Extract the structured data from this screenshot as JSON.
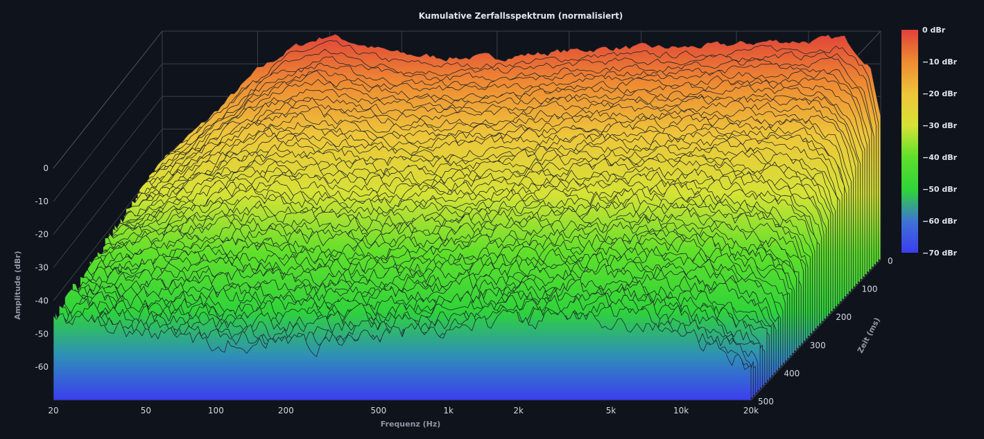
{
  "chart_data": {
    "type": "waterfall-3d",
    "title": "Kumulative Zerfallsspektrum (normalisiert)",
    "xlabel": "Frequenz (Hz)",
    "ylabel": "Amplitude (dBr)",
    "zlabel": "Zeit (ms)",
    "x_scale": "log",
    "x_ticks": [
      "20",
      "50",
      "100",
      "200",
      "500",
      "1k",
      "2k",
      "5k",
      "10k",
      "20k"
    ],
    "x_tick_values": [
      20,
      50,
      100,
      200,
      500,
      1000,
      2000,
      5000,
      10000,
      20000
    ],
    "y_ticks": [
      "0",
      "-10",
      "-20",
      "-30",
      "-40",
      "-50",
      "-60"
    ],
    "y_tick_values": [
      0,
      -10,
      -20,
      -30,
      -40,
      -50,
      -60
    ],
    "ylim": [
      -70,
      0
    ],
    "z_ticks": [
      "0",
      "100",
      "200",
      "300",
      "400",
      "500"
    ],
    "z_tick_values": [
      0,
      100,
      200,
      300,
      400,
      500
    ],
    "zlim": [
      0,
      500
    ],
    "colorbar": {
      "ticks": [
        "0 dBr",
        "−10 dBr",
        "−20 dBr",
        "−30 dBr",
        "−40 dBr",
        "−50 dBr",
        "−60 dBr",
        "−70 dBr"
      ],
      "range": [
        -70,
        0
      ],
      "colors": [
        "#3b3df0",
        "#3f73d6",
        "#2fd33a",
        "#5fe02a",
        "#d6e236",
        "#eec53a",
        "#ee8a32",
        "#e0403a"
      ]
    },
    "grid": true,
    "initial_response": {
      "x": [
        20,
        30,
        50,
        70,
        100,
        150,
        200,
        300,
        500,
        700,
        1000,
        1500,
        2000,
        3000,
        5000,
        7000,
        10000,
        14000,
        18000,
        20000
      ],
      "y": [
        -39,
        -28,
        -12,
        -5,
        -1,
        -5,
        -7,
        -8,
        -8,
        -7,
        -6,
        -5,
        -5,
        -5,
        -4,
        -3,
        -3,
        -2,
        -10,
        -25
      ]
    },
    "floor_response": {
      "x": [
        20,
        50,
        100,
        200,
        500,
        1000,
        2000,
        5000,
        10000,
        20000
      ],
      "y": [
        -45,
        -50,
        -52,
        -53,
        -51,
        -48,
        -46,
        -45,
        -50,
        -60
      ]
    },
    "slices": 58
  }
}
